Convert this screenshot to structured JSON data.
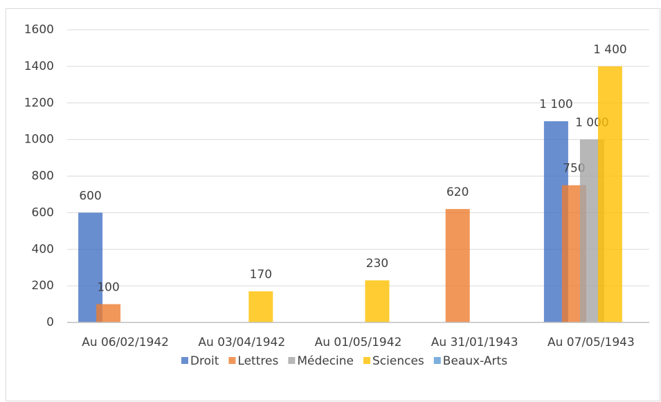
{
  "chart_data": {
    "type": "bar",
    "categories": [
      "Au 06/02/1942",
      "Au 03/04/1942",
      "Au 01/05/1942",
      "Au 31/01/1943",
      "Au 07/05/1943"
    ],
    "series": [
      {
        "name": "Droit",
        "color": "#4472c4",
        "values": [
          600,
          null,
          null,
          null,
          1100
        ],
        "value_labels": [
          "600",
          null,
          null,
          null,
          "1 100"
        ]
      },
      {
        "name": "Lettres",
        "color": "#ed7d31",
        "values": [
          100,
          null,
          null,
          620,
          750
        ],
        "value_labels": [
          "100",
          null,
          null,
          "620",
          "750"
        ]
      },
      {
        "name": "Médecine",
        "color": "#a5a5a5",
        "values": [
          null,
          null,
          null,
          null,
          1000
        ],
        "value_labels": [
          null,
          null,
          null,
          null,
          "1 000"
        ]
      },
      {
        "name": "Sciences",
        "color": "#ffc000",
        "values": [
          null,
          170,
          230,
          null,
          1400
        ],
        "value_labels": [
          null,
          "170",
          "230",
          null,
          "1 400"
        ]
      },
      {
        "name": "Beaux-Arts",
        "color": "#5b9bd5",
        "values": [
          null,
          null,
          null,
          null,
          null
        ],
        "value_labels": [
          null,
          null,
          null,
          null,
          null
        ]
      }
    ],
    "ylim": [
      0,
      1600
    ],
    "yticks": [
      0,
      200,
      400,
      600,
      800,
      1000,
      1200,
      1400,
      1600
    ],
    "grid": true,
    "legend": "bottom"
  }
}
